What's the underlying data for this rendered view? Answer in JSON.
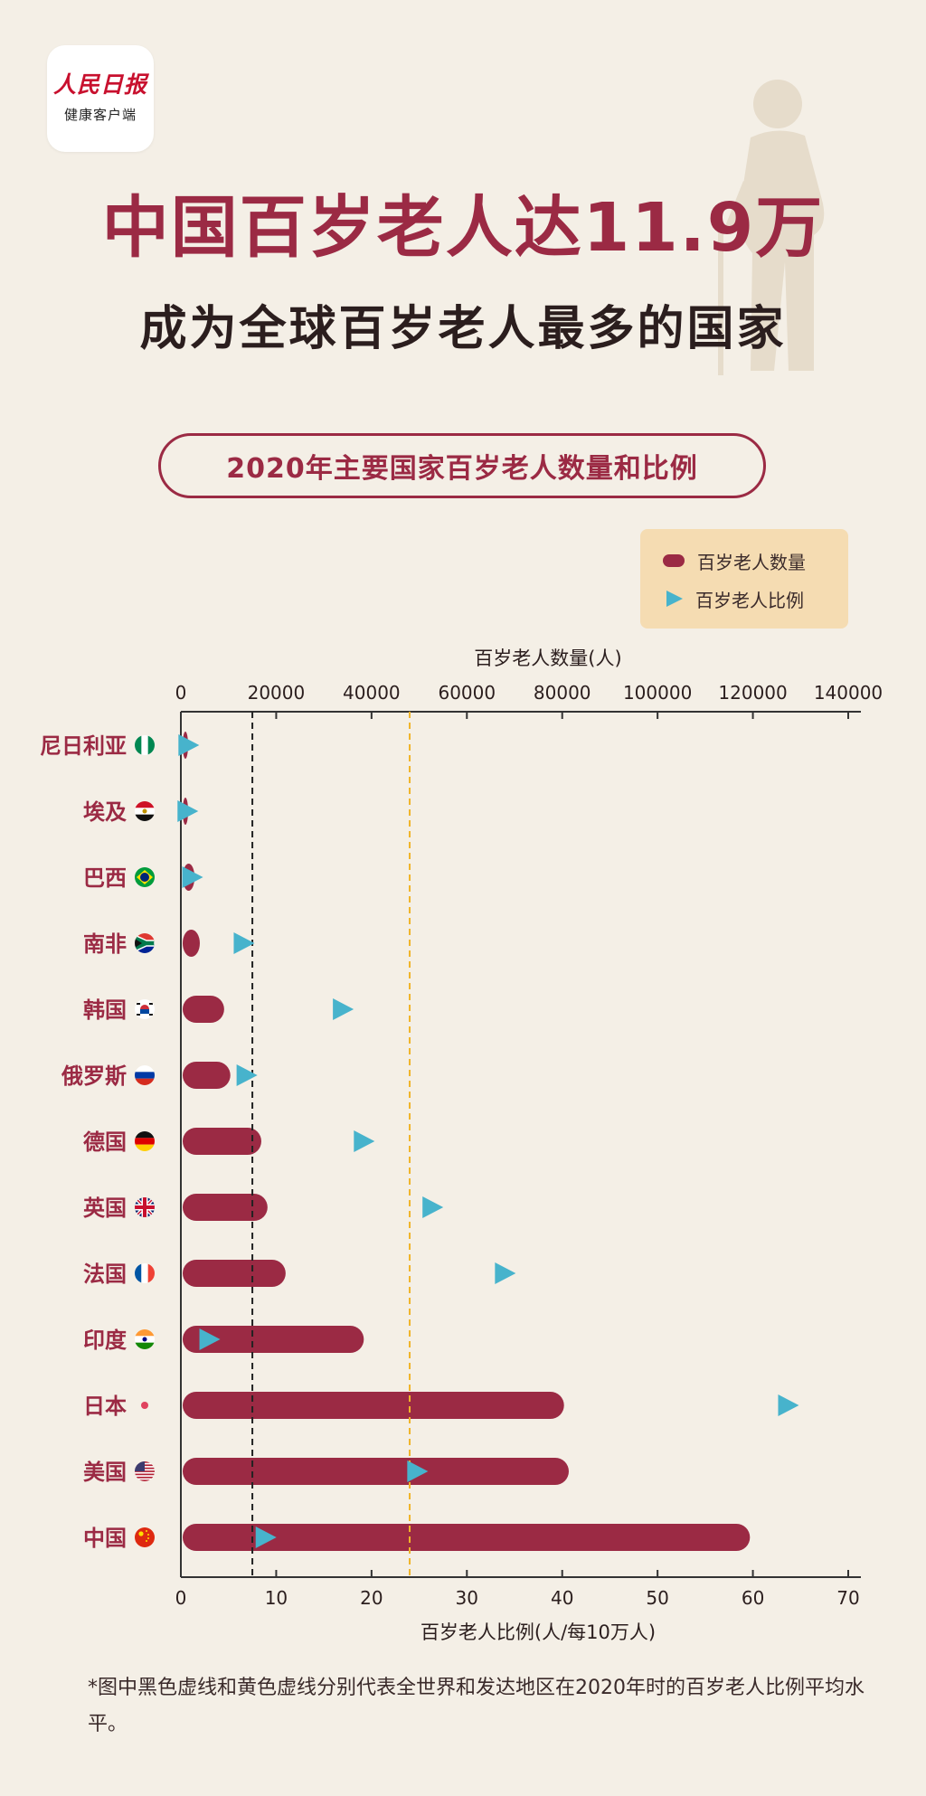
{
  "brand": {
    "name": "人民日报",
    "sub": "健康客户端"
  },
  "header": {
    "title_line1": "中国百岁老人达11.9万",
    "title_line2": "成为全球百岁老人最多的国家"
  },
  "colors": {
    "bar": "#9b2a44",
    "marker": "#47b3cc",
    "world_avg_line": "#222222",
    "developed_avg_line": "#f0b429",
    "background": "#f4efe6"
  },
  "chart_data": {
    "type": "bar",
    "title": "2020年主要国家百岁老人数量和比例",
    "orientation": "horizontal",
    "top_axis": {
      "label": "百岁老人数量(人)",
      "range": [
        0,
        140000
      ],
      "ticks": [
        0,
        20000,
        40000,
        60000,
        80000,
        100000,
        120000,
        140000
      ]
    },
    "bottom_axis": {
      "label": "百岁老人比例(人/每10万人)",
      "range": [
        0,
        70
      ],
      "ticks": [
        0,
        10,
        20,
        30,
        40,
        50,
        60,
        70
      ]
    },
    "legend": {
      "position": "top-right",
      "items": [
        {
          "label": "百岁老人数量",
          "icon": "bar"
        },
        {
          "label": "百岁老人比例",
          "icon": "triangle"
        }
      ]
    },
    "categories": [
      "尼日利亚",
      "埃及",
      "巴西",
      "南非",
      "韩国",
      "俄罗斯",
      "德国",
      "英国",
      "法国",
      "印度",
      "日本",
      "美国",
      "中国"
    ],
    "flag_icons": [
      "nigeria-flag-icon",
      "egypt-flag-icon",
      "brazil-flag-icon",
      "south-africa-flag-icon",
      "south-korea-flag-icon",
      "russia-flag-icon",
      "germany-flag-icon",
      "uk-flag-icon",
      "france-flag-icon",
      "india-flag-icon",
      "japan-flag-icon",
      "usa-flag-icon",
      "china-flag-icon"
    ],
    "series": [
      {
        "name": "百岁老人数量",
        "axis": "top",
        "mark": "bar",
        "values": [
          100,
          200,
          2500,
          3600,
          8700,
          10000,
          16500,
          17800,
          21600,
          38000,
          80000,
          81000,
          119000
        ]
      },
      {
        "name": "百岁老人比例",
        "axis": "bottom",
        "mark": "triangle",
        "values": [
          0.6,
          0.5,
          1.0,
          6.4,
          16.8,
          6.7,
          19.0,
          26.2,
          33.8,
          2.8,
          63.5,
          24.6,
          8.7
        ]
      }
    ],
    "reference_lines": [
      {
        "axis": "bottom",
        "value": 7.5,
        "style": "dashed",
        "color": "#222222"
      },
      {
        "axis": "bottom",
        "value": 24,
        "style": "dashed",
        "color": "#f0b429"
      }
    ]
  },
  "footnote": "*图中黑色虚线和黄色虚线分别代表全世界和发达地区在2020年时的百岁老人比例平均水平。"
}
